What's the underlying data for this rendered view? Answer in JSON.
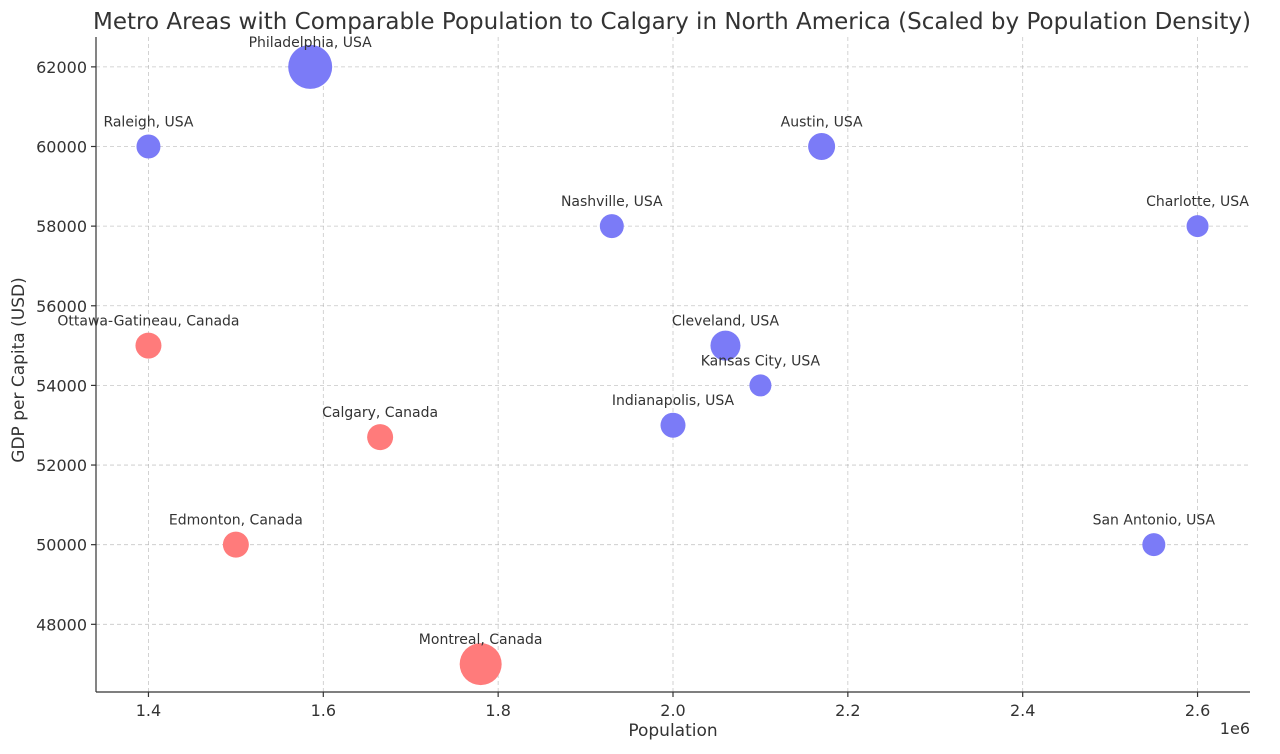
{
  "chart_data": {
    "type": "scatter",
    "title": "Metro Areas with Comparable Population to Calgary in North America (Scaled by Population Density)",
    "xlabel": "Population",
    "ylabel": "GDP per Capita (USD)",
    "x_offset_label": "1e6",
    "xlim": [
      1.34,
      2.66
    ],
    "ylim": [
      46300,
      62750
    ],
    "x_ticks": [
      1.4,
      1.6,
      1.8,
      2.0,
      2.2,
      2.4,
      2.6
    ],
    "x_tick_labels": [
      "1.4",
      "1.6",
      "1.8",
      "2.0",
      "2.2",
      "2.4",
      "2.6"
    ],
    "y_ticks": [
      48000,
      50000,
      52000,
      54000,
      56000,
      58000,
      60000,
      62000
    ],
    "y_tick_labels": [
      "48000",
      "50000",
      "52000",
      "54000",
      "56000",
      "58000",
      "60000",
      "62000"
    ],
    "grid": true,
    "colors": {
      "USA": "#7b7bf7",
      "Canada": "#ff7b7b"
    },
    "points": [
      {
        "label": "Philadelphia, USA",
        "x": 1.585,
        "y": 62000,
        "size": 22,
        "country": "USA"
      },
      {
        "label": "Raleigh, USA",
        "x": 1.4,
        "y": 60000,
        "size": 12,
        "country": "USA"
      },
      {
        "label": "Austin, USA",
        "x": 2.17,
        "y": 60000,
        "size": 13.5,
        "country": "USA"
      },
      {
        "label": "Nashville, USA",
        "x": 1.93,
        "y": 58000,
        "size": 12,
        "country": "USA"
      },
      {
        "label": "Charlotte, USA",
        "x": 2.6,
        "y": 58000,
        "size": 11,
        "country": "USA"
      },
      {
        "label": "Ottawa-Gatineau, Canada",
        "x": 1.4,
        "y": 55000,
        "size": 13,
        "country": "Canada"
      },
      {
        "label": "Cleveland, USA",
        "x": 2.06,
        "y": 55000,
        "size": 15,
        "country": "USA"
      },
      {
        "label": "Kansas City, USA",
        "x": 2.1,
        "y": 54000,
        "size": 11,
        "country": "USA"
      },
      {
        "label": "Calgary, Canada",
        "x": 1.665,
        "y": 52700,
        "size": 13,
        "country": "Canada"
      },
      {
        "label": "Indianapolis, USA",
        "x": 2.0,
        "y": 53000,
        "size": 12.5,
        "country": "USA"
      },
      {
        "label": "Edmonton, Canada",
        "x": 1.5,
        "y": 50000,
        "size": 13,
        "country": "Canada"
      },
      {
        "label": "San Antonio, USA",
        "x": 2.55,
        "y": 50000,
        "size": 11.5,
        "country": "USA"
      },
      {
        "label": "Montreal, Canada",
        "x": 1.78,
        "y": 47000,
        "size": 21,
        "country": "Canada"
      }
    ]
  }
}
